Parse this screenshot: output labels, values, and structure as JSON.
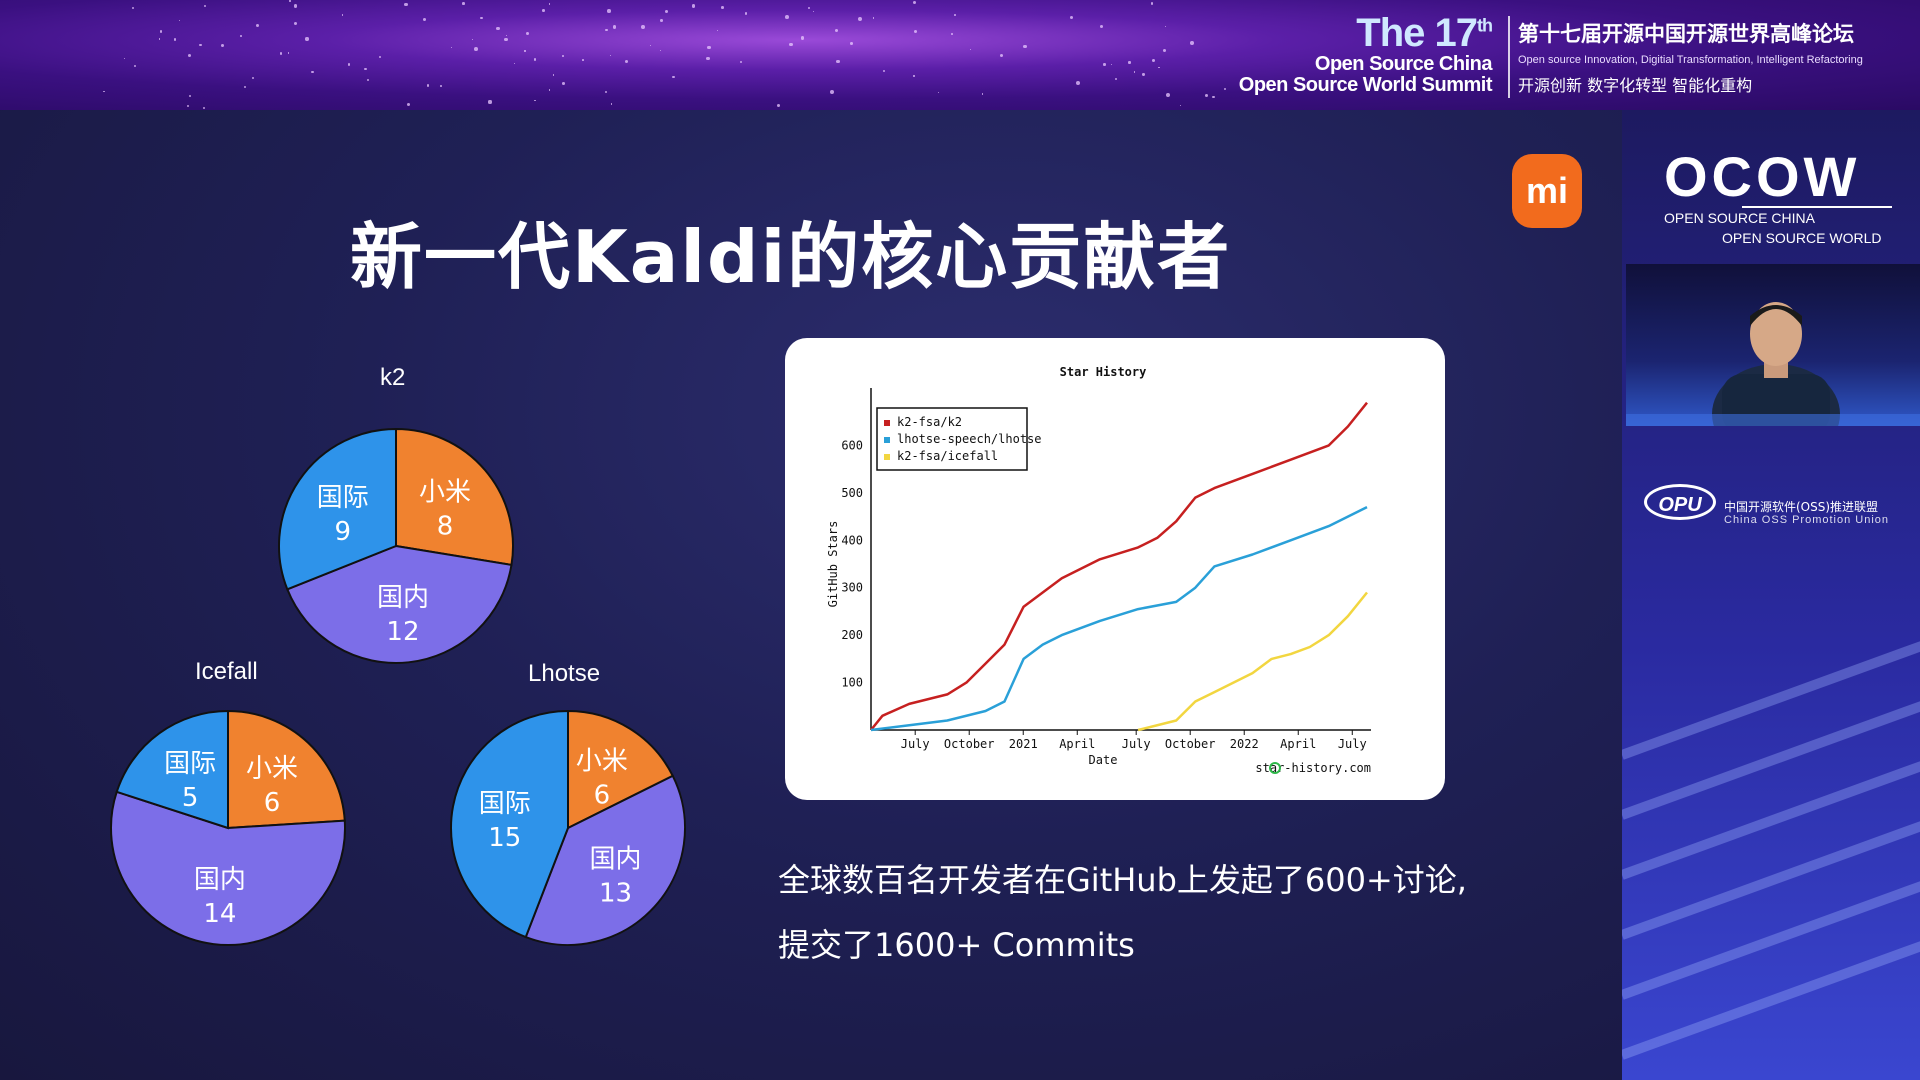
{
  "banner": {
    "edition_main": "The 17",
    "edition_suffix": "th",
    "event_line1": "Open Source China",
    "event_line2": "Open Source World Summit",
    "forum_cn": "第十七届开源中国开源世界高峰论坛",
    "tagline_en": "Open source Innovation,  Digitial Transformation,  Intelligent Refactoring",
    "tagline_cn": "开源创新  数字化转型  智能化重构"
  },
  "slide": {
    "title": "新一代Kaldi的核心贡献者",
    "brand_logo_text": "mi",
    "caption_line1": "全球数百名开发者在GitHub上发起了600+讨论,",
    "caption_line2": "提交了1600+ Commits"
  },
  "colors": {
    "xiaomi": "#f0822f",
    "domestic": "#7c6ee8",
    "international": "#2e93ea",
    "k2_line": "#c62020",
    "lhotse_line": "#2aa0d8",
    "icefall_line": "#f2d640"
  },
  "chart_data": [
    {
      "type": "pie",
      "title": "k2",
      "slices": [
        {
          "label": "小米",
          "value": 8
        },
        {
          "label": "国内",
          "value": 12
        },
        {
          "label": "国际",
          "value": 9
        }
      ]
    },
    {
      "type": "pie",
      "title": "Icefall",
      "slices": [
        {
          "label": "小米",
          "value": 6
        },
        {
          "label": "国内",
          "value": 14
        },
        {
          "label": "国际",
          "value": 5
        }
      ]
    },
    {
      "type": "pie",
      "title": "Lhotse",
      "slices": [
        {
          "label": "小米",
          "value": 6
        },
        {
          "label": "国内",
          "value": 13
        },
        {
          "label": "国际",
          "value": 15
        }
      ]
    },
    {
      "type": "line",
      "title": "Star History",
      "xlabel": "Date",
      "ylabel": "GitHub Stars",
      "ylim": [
        0,
        700
      ],
      "yticks": [
        "100",
        "200",
        "300",
        "400",
        "500",
        "600"
      ],
      "xticks": [
        "July",
        "October",
        "2021",
        "April",
        "July",
        "October",
        "2022",
        "April",
        "July"
      ],
      "source": "star-history.com",
      "legend_position": "top-left",
      "series": [
        {
          "name": "k2-fsa/k2",
          "color_key": "k2_line",
          "points": [
            [
              0,
              0
            ],
            [
              0.3,
              30
            ],
            [
              1,
              55
            ],
            [
              2,
              75
            ],
            [
              2.5,
              100
            ],
            [
              3,
              140
            ],
            [
              3.5,
              180
            ],
            [
              4,
              260
            ],
            [
              4.5,
              290
            ],
            [
              5,
              320
            ],
            [
              6,
              360
            ],
            [
              7,
              385
            ],
            [
              7.5,
              405
            ],
            [
              8,
              440
            ],
            [
              8.5,
              490
            ],
            [
              9,
              510
            ],
            [
              10,
              540
            ],
            [
              11,
              570
            ],
            [
              12,
              600
            ],
            [
              12.5,
              640
            ],
            [
              13,
              690
            ]
          ]
        },
        {
          "name": "lhotse-speech/lhotse",
          "color_key": "lhotse_line",
          "points": [
            [
              0,
              0
            ],
            [
              1,
              10
            ],
            [
              2,
              20
            ],
            [
              3,
              40
            ],
            [
              3.5,
              60
            ],
            [
              4,
              150
            ],
            [
              4.5,
              180
            ],
            [
              5,
              200
            ],
            [
              6,
              230
            ],
            [
              7,
              255
            ],
            [
              8,
              270
            ],
            [
              8.5,
              300
            ],
            [
              9,
              345
            ],
            [
              10,
              370
            ],
            [
              11,
              400
            ],
            [
              12,
              430
            ],
            [
              13,
              470
            ]
          ]
        },
        {
          "name": "k2-fsa/icefall",
          "color_key": "icefall_line",
          "points": [
            [
              7,
              0
            ],
            [
              8,
              20
            ],
            [
              8.5,
              60
            ],
            [
              9,
              80
            ],
            [
              10,
              120
            ],
            [
              10.5,
              150
            ],
            [
              11,
              160
            ],
            [
              11.5,
              175
            ],
            [
              12,
              200
            ],
            [
              12.5,
              240
            ],
            [
              13,
              290
            ]
          ]
        }
      ]
    }
  ],
  "sidebar": {
    "ocow_logo": "OCOW",
    "ocow_line1": "OPEN SOURCE CHINA",
    "ocow_line2": "OPEN SOURCE WORLD",
    "opu_logo": "OPU",
    "opu_cn": "中国开源软件(OSS)推进联盟",
    "opu_en": "China OSS Promotion Union"
  }
}
